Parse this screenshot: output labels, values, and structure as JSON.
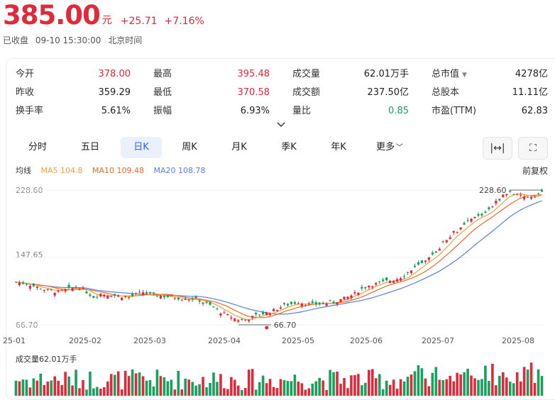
{
  "header": {
    "price": "385.00",
    "unit": "元",
    "change": "+25.71",
    "change_pct": "+7.16%"
  },
  "status": {
    "state": "已收盘",
    "time": "09-10 15:30:00",
    "zone": "北京时间"
  },
  "stats": [
    {
      "label": "今开",
      "value": "378.00",
      "color": "red"
    },
    {
      "label": "最高",
      "value": "395.48",
      "color": "red"
    },
    {
      "label": "成交量",
      "value": "62.01万手",
      "color": "dark"
    },
    {
      "label": "总市值",
      "value": "4278亿",
      "color": "dark",
      "has_dropdown": true
    },
    {
      "label": "昨收",
      "value": "359.29",
      "color": "dark"
    },
    {
      "label": "最低",
      "value": "370.58",
      "color": "red"
    },
    {
      "label": "成交额",
      "value": "237.50亿",
      "color": "dark"
    },
    {
      "label": "总股本",
      "value": "11.11亿",
      "color": "dark"
    },
    {
      "label": "换手率",
      "value": "5.61%",
      "color": "dark"
    },
    {
      "label": "振幅",
      "value": "6.93%",
      "color": "dark"
    },
    {
      "label": "量比",
      "value": "0.85",
      "color": "green"
    },
    {
      "label": "市盈(TTM)",
      "value": "62.83",
      "color": "dark"
    }
  ],
  "tabs": [
    {
      "label": "分时",
      "active": false
    },
    {
      "label": "五日",
      "active": false
    },
    {
      "label": "日K",
      "active": true
    },
    {
      "label": "周K",
      "active": false
    },
    {
      "label": "月K",
      "active": false
    },
    {
      "label": "季K",
      "active": false
    },
    {
      "label": "年K",
      "active": false
    },
    {
      "label": "更多",
      "active": false,
      "dropdown": true
    }
  ],
  "tools": {
    "fit_icon": "horizontal-fit-icon",
    "fullscreen_icon": "fullscreen-icon",
    "fit_glyph": "|↔|",
    "fullscreen_glyph": "⛶"
  },
  "ma_legend": {
    "label": "均线",
    "ma5": "MA5 104.8",
    "ma10": "MA10 109.48",
    "ma20": "MA20 108.78",
    "adjust": "前复权"
  },
  "colors": {
    "up": "#e0293a",
    "down": "#1a9f5c",
    "ma5": "#f2a03c",
    "ma10": "#ec6a2a",
    "ma20": "#5b7ee0",
    "accent": "#2b63e8"
  },
  "chart_data": {
    "type": "candlestick",
    "y_ticks": [
      "228.60",
      "147.65",
      "66.70"
    ],
    "ylim": [
      66.7,
      228.6
    ],
    "x_ticks": [
      "25-01",
      "2025-02",
      "2025-03",
      "2025-04",
      "2025-05",
      "2025-06",
      "2025-07",
      "2025-08"
    ],
    "max_label": "228.60",
    "min_label": "66.70",
    "volume_title": "成交量62.01万手",
    "close_path": [
      [
        0,
        118
      ],
      [
        3,
        116
      ],
      [
        6,
        112
      ],
      [
        9,
        108
      ],
      [
        12,
        106
      ],
      [
        15,
        110
      ],
      [
        18,
        112
      ],
      [
        20,
        106
      ],
      [
        22,
        100
      ],
      [
        24,
        104
      ],
      [
        26,
        103
      ],
      [
        28,
        102
      ],
      [
        30,
        101
      ],
      [
        32,
        100
      ],
      [
        34,
        103
      ],
      [
        36,
        106
      ],
      [
        38,
        103
      ],
      [
        40,
        102
      ],
      [
        42,
        101
      ],
      [
        44,
        100
      ],
      [
        46,
        99
      ],
      [
        48,
        98
      ],
      [
        50,
        98
      ],
      [
        52,
        96
      ],
      [
        54,
        92
      ],
      [
        56,
        88
      ],
      [
        58,
        82
      ],
      [
        60,
        78
      ],
      [
        62,
        74
      ],
      [
        64,
        72
      ],
      [
        66,
        74
      ],
      [
        68,
        78
      ],
      [
        70,
        80
      ],
      [
        72,
        82
      ],
      [
        74,
        86
      ],
      [
        76,
        90
      ],
      [
        78,
        92
      ],
      [
        80,
        94
      ],
      [
        82,
        92
      ],
      [
        84,
        91
      ],
      [
        86,
        92
      ],
      [
        88,
        93
      ],
      [
        90,
        94
      ],
      [
        92,
        97
      ],
      [
        94,
        100
      ],
      [
        96,
        104
      ],
      [
        98,
        110
      ],
      [
        100,
        114
      ],
      [
        102,
        116
      ],
      [
        104,
        118
      ],
      [
        106,
        120
      ],
      [
        108,
        122
      ],
      [
        110,
        126
      ],
      [
        112,
        132
      ],
      [
        114,
        138
      ],
      [
        116,
        142
      ],
      [
        118,
        150
      ],
      [
        120,
        160
      ],
      [
        122,
        170
      ],
      [
        124,
        178
      ],
      [
        126,
        182
      ],
      [
        128,
        190
      ],
      [
        130,
        196
      ],
      [
        132,
        198
      ],
      [
        134,
        206
      ],
      [
        136,
        214
      ],
      [
        138,
        222
      ],
      [
        140,
        226
      ],
      [
        142,
        222
      ],
      [
        144,
        220
      ],
      [
        146,
        221
      ],
      [
        148,
        224
      ],
      [
        150,
        228
      ]
    ]
  }
}
